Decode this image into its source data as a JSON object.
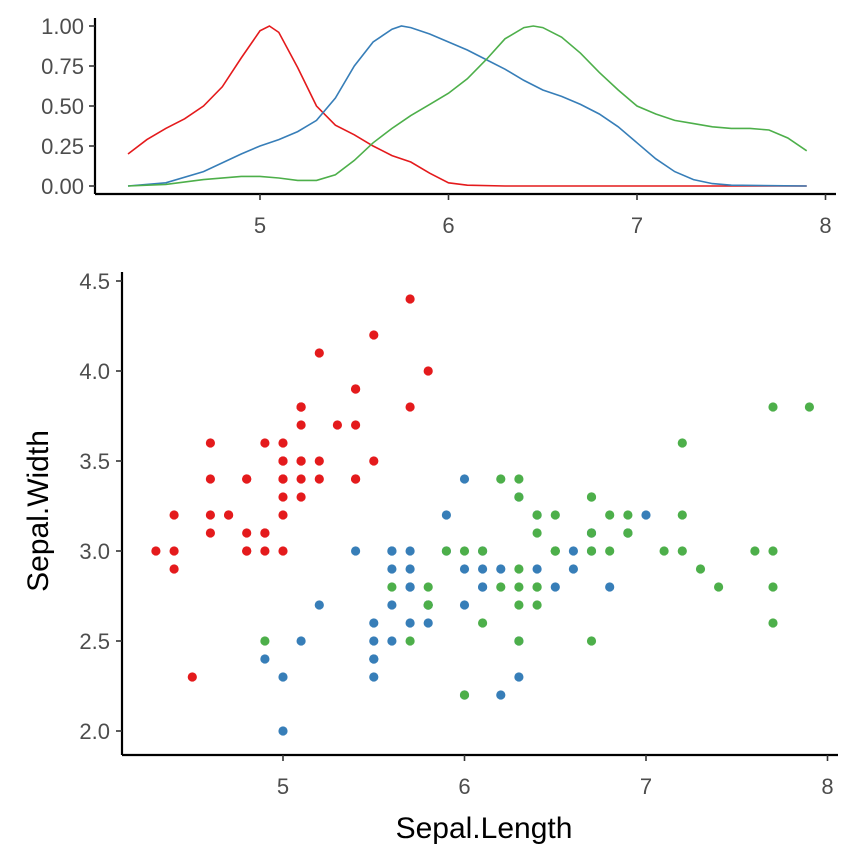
{
  "chart_data": [
    {
      "type": "line",
      "title": "",
      "xlabel": "",
      "ylabel": "",
      "xlim": [
        4.3,
        7.9
      ],
      "ylim": [
        0,
        1
      ],
      "x_ticks": [
        "5",
        "6",
        "7",
        "8"
      ],
      "y_ticks": [
        "0.00",
        "0.25",
        "0.50",
        "0.75",
        "1.00"
      ],
      "grid": false,
      "legend": "none",
      "series": [
        {
          "color": "#E41A1C",
          "points": [
            [
              4.3,
              0.2
            ],
            [
              4.4,
              0.29
            ],
            [
              4.5,
              0.36
            ],
            [
              4.6,
              0.42
            ],
            [
              4.7,
              0.5
            ],
            [
              4.8,
              0.62
            ],
            [
              4.9,
              0.8
            ],
            [
              5.0,
              0.97
            ],
            [
              5.05,
              1.0
            ],
            [
              5.1,
              0.96
            ],
            [
              5.2,
              0.74
            ],
            [
              5.3,
              0.5
            ],
            [
              5.4,
              0.38
            ],
            [
              5.5,
              0.32
            ],
            [
              5.6,
              0.25
            ],
            [
              5.7,
              0.19
            ],
            [
              5.8,
              0.15
            ],
            [
              5.9,
              0.08
            ],
            [
              6.0,
              0.02
            ],
            [
              6.1,
              0.005
            ],
            [
              6.3,
              0.0
            ],
            [
              7.9,
              0.0
            ]
          ]
        },
        {
          "color": "#377EB8",
          "points": [
            [
              4.3,
              0.0
            ],
            [
              4.5,
              0.02
            ],
            [
              4.7,
              0.09
            ],
            [
              4.9,
              0.2
            ],
            [
              5.0,
              0.25
            ],
            [
              5.1,
              0.29
            ],
            [
              5.2,
              0.34
            ],
            [
              5.3,
              0.41
            ],
            [
              5.4,
              0.55
            ],
            [
              5.5,
              0.75
            ],
            [
              5.6,
              0.9
            ],
            [
              5.7,
              0.98
            ],
            [
              5.75,
              1.0
            ],
            [
              5.8,
              0.99
            ],
            [
              5.9,
              0.95
            ],
            [
              6.0,
              0.9
            ],
            [
              6.1,
              0.85
            ],
            [
              6.2,
              0.79
            ],
            [
              6.3,
              0.73
            ],
            [
              6.4,
              0.66
            ],
            [
              6.5,
              0.6
            ],
            [
              6.6,
              0.56
            ],
            [
              6.7,
              0.51
            ],
            [
              6.8,
              0.45
            ],
            [
              6.9,
              0.37
            ],
            [
              7.0,
              0.27
            ],
            [
              7.1,
              0.17
            ],
            [
              7.2,
              0.09
            ],
            [
              7.3,
              0.04
            ],
            [
              7.4,
              0.015
            ],
            [
              7.5,
              0.005
            ],
            [
              7.9,
              0.0
            ]
          ]
        },
        {
          "color": "#4DAF4A",
          "points": [
            [
              4.3,
              0.0
            ],
            [
              4.5,
              0.01
            ],
            [
              4.7,
              0.04
            ],
            [
              4.9,
              0.06
            ],
            [
              5.0,
              0.06
            ],
            [
              5.1,
              0.05
            ],
            [
              5.2,
              0.035
            ],
            [
              5.3,
              0.035
            ],
            [
              5.4,
              0.07
            ],
            [
              5.5,
              0.16
            ],
            [
              5.6,
              0.27
            ],
            [
              5.7,
              0.36
            ],
            [
              5.8,
              0.44
            ],
            [
              5.9,
              0.51
            ],
            [
              6.0,
              0.58
            ],
            [
              6.1,
              0.67
            ],
            [
              6.2,
              0.79
            ],
            [
              6.3,
              0.92
            ],
            [
              6.4,
              0.99
            ],
            [
              6.45,
              1.0
            ],
            [
              6.5,
              0.99
            ],
            [
              6.6,
              0.93
            ],
            [
              6.7,
              0.83
            ],
            [
              6.8,
              0.71
            ],
            [
              6.9,
              0.6
            ],
            [
              7.0,
              0.5
            ],
            [
              7.1,
              0.45
            ],
            [
              7.2,
              0.41
            ],
            [
              7.3,
              0.39
            ],
            [
              7.4,
              0.37
            ],
            [
              7.5,
              0.36
            ],
            [
              7.6,
              0.36
            ],
            [
              7.7,
              0.35
            ],
            [
              7.8,
              0.3
            ],
            [
              7.9,
              0.22
            ]
          ]
        }
      ]
    },
    {
      "type": "scatter",
      "title": "",
      "xlabel": "Sepal.Length",
      "ylabel": "Sepal.Width",
      "xlim": [
        4.3,
        7.9
      ],
      "ylim": [
        2.0,
        4.4
      ],
      "x_ticks": [
        "5",
        "6",
        "7",
        "8"
      ],
      "y_ticks": [
        "2.0",
        "2.5",
        "3.0",
        "3.5",
        "4.0",
        "4.5"
      ],
      "grid": false,
      "legend": "none",
      "series": [
        {
          "color": "#E41A1C",
          "points": [
            [
              5.1,
              3.5
            ],
            [
              4.9,
              3.0
            ],
            [
              4.7,
              3.2
            ],
            [
              4.6,
              3.1
            ],
            [
              5.0,
              3.6
            ],
            [
              5.4,
              3.9
            ],
            [
              4.6,
              3.4
            ],
            [
              5.0,
              3.4
            ],
            [
              4.4,
              2.9
            ],
            [
              4.9,
              3.1
            ],
            [
              5.4,
              3.7
            ],
            [
              4.8,
              3.4
            ],
            [
              4.8,
              3.0
            ],
            [
              4.3,
              3.0
            ],
            [
              5.8,
              4.0
            ],
            [
              5.7,
              4.4
            ],
            [
              5.4,
              3.9
            ],
            [
              5.1,
              3.5
            ],
            [
              5.7,
              3.8
            ],
            [
              5.1,
              3.8
            ],
            [
              5.4,
              3.4
            ],
            [
              5.1,
              3.7
            ],
            [
              4.6,
              3.6
            ],
            [
              5.1,
              3.3
            ],
            [
              4.8,
              3.4
            ],
            [
              5.0,
              3.0
            ],
            [
              5.0,
              3.4
            ],
            [
              5.2,
              3.5
            ],
            [
              5.2,
              3.4
            ],
            [
              4.7,
              3.2
            ],
            [
              4.8,
              3.1
            ],
            [
              5.4,
              3.4
            ],
            [
              5.2,
              4.1
            ],
            [
              5.5,
              4.2
            ],
            [
              4.9,
              3.1
            ],
            [
              5.0,
              3.2
            ],
            [
              5.5,
              3.5
            ],
            [
              4.9,
              3.6
            ],
            [
              4.4,
              3.0
            ],
            [
              5.1,
              3.4
            ],
            [
              5.0,
              3.5
            ],
            [
              4.5,
              2.3
            ],
            [
              4.4,
              3.2
            ],
            [
              5.0,
              3.5
            ],
            [
              5.1,
              3.8
            ],
            [
              4.8,
              3.0
            ],
            [
              5.1,
              3.8
            ],
            [
              4.6,
              3.2
            ],
            [
              5.3,
              3.7
            ],
            [
              5.0,
              3.3
            ]
          ]
        },
        {
          "color": "#377EB8",
          "points": [
            [
              7.0,
              3.2
            ],
            [
              6.4,
              3.2
            ],
            [
              6.9,
              3.1
            ],
            [
              5.5,
              2.3
            ],
            [
              6.5,
              2.8
            ],
            [
              5.7,
              2.8
            ],
            [
              6.3,
              3.3
            ],
            [
              4.9,
              2.4
            ],
            [
              6.6,
              2.9
            ],
            [
              5.2,
              2.7
            ],
            [
              5.0,
              2.0
            ],
            [
              5.9,
              3.0
            ],
            [
              6.0,
              2.2
            ],
            [
              6.1,
              2.9
            ],
            [
              5.6,
              2.9
            ],
            [
              6.7,
              3.1
            ],
            [
              5.6,
              3.0
            ],
            [
              5.8,
              2.7
            ],
            [
              6.2,
              2.2
            ],
            [
              5.6,
              2.5
            ],
            [
              5.9,
              3.2
            ],
            [
              6.1,
              2.8
            ],
            [
              6.3,
              2.5
            ],
            [
              6.1,
              2.8
            ],
            [
              6.4,
              2.9
            ],
            [
              6.6,
              3.0
            ],
            [
              6.8,
              2.8
            ],
            [
              6.7,
              3.0
            ],
            [
              6.0,
              2.9
            ],
            [
              5.7,
              2.6
            ],
            [
              5.5,
              2.4
            ],
            [
              5.5,
              2.4
            ],
            [
              5.8,
              2.7
            ],
            [
              6.0,
              2.7
            ],
            [
              5.4,
              3.0
            ],
            [
              6.0,
              3.4
            ],
            [
              6.7,
              3.1
            ],
            [
              6.3,
              2.3
            ],
            [
              5.6,
              3.0
            ],
            [
              5.5,
              2.5
            ],
            [
              5.5,
              2.6
            ],
            [
              6.1,
              3.0
            ],
            [
              5.8,
              2.6
            ],
            [
              5.0,
              2.3
            ],
            [
              5.6,
              2.7
            ],
            [
              5.7,
              3.0
            ],
            [
              5.7,
              2.9
            ],
            [
              6.2,
              2.9
            ],
            [
              5.1,
              2.5
            ],
            [
              5.7,
              2.8
            ]
          ]
        },
        {
          "color": "#4DAF4A",
          "points": [
            [
              6.3,
              3.3
            ],
            [
              5.8,
              2.7
            ],
            [
              7.1,
              3.0
            ],
            [
              6.3,
              2.9
            ],
            [
              6.5,
              3.0
            ],
            [
              7.6,
              3.0
            ],
            [
              4.9,
              2.5
            ],
            [
              7.3,
              2.9
            ],
            [
              6.7,
              2.5
            ],
            [
              7.2,
              3.6
            ],
            [
              6.5,
              3.2
            ],
            [
              6.4,
              2.7
            ],
            [
              6.8,
              3.0
            ],
            [
              5.7,
              2.5
            ],
            [
              5.8,
              2.8
            ],
            [
              6.4,
              3.2
            ],
            [
              6.5,
              3.0
            ],
            [
              7.7,
              3.8
            ],
            [
              7.7,
              2.6
            ],
            [
              6.0,
              2.2
            ],
            [
              6.9,
              3.2
            ],
            [
              5.6,
              2.8
            ],
            [
              7.7,
              2.8
            ],
            [
              6.3,
              2.7
            ],
            [
              6.7,
              3.3
            ],
            [
              7.2,
              3.2
            ],
            [
              6.2,
              2.8
            ],
            [
              6.1,
              3.0
            ],
            [
              6.4,
              2.8
            ],
            [
              7.2,
              3.0
            ],
            [
              7.4,
              2.8
            ],
            [
              7.9,
              3.8
            ],
            [
              6.4,
              2.8
            ],
            [
              6.3,
              2.8
            ],
            [
              6.1,
              2.6
            ],
            [
              7.7,
              3.0
            ],
            [
              6.3,
              3.4
            ],
            [
              6.4,
              3.1
            ],
            [
              6.0,
              3.0
            ],
            [
              6.9,
              3.1
            ],
            [
              6.7,
              3.1
            ],
            [
              6.9,
              3.1
            ],
            [
              5.8,
              2.7
            ],
            [
              6.8,
              3.2
            ],
            [
              6.7,
              3.3
            ],
            [
              6.7,
              3.0
            ],
            [
              6.3,
              2.5
            ],
            [
              6.5,
              3.0
            ],
            [
              6.2,
              3.4
            ],
            [
              5.9,
              3.0
            ]
          ]
        }
      ]
    }
  ]
}
